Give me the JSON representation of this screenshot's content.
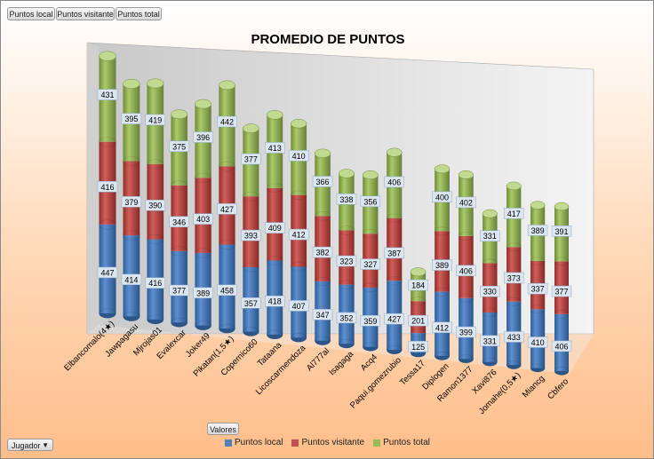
{
  "field_buttons": [
    "Puntos local",
    "Puntos visitante",
    "Puntos total"
  ],
  "values_button": "Valores",
  "row_field": {
    "label": "Jugador",
    "arrow": "▼"
  },
  "colors": {
    "local": "#4f81bd",
    "visitante": "#c0504d",
    "total": "#9bbb59"
  },
  "chart_data": {
    "type": "bar",
    "stacked": true,
    "three_d": true,
    "title": "PROMEDIO DE PUNTOS",
    "categories": [
      "Elbancomalo(4★)",
      "Jawpagasu",
      "Mjrojas01",
      "Evalexcar",
      "Joker49",
      "Pikatan(1,5★)",
      "Copernico60",
      "Tataana",
      "Licoscarmendoza",
      "Al777al",
      "Isagaga",
      "Acq4",
      "Paqui.gomezrubio",
      "Tessa17",
      "Diplogen",
      "Ramon1377",
      "Xavi876",
      "Jomahe(0,5★)",
      "Miancg",
      "Cbfero"
    ],
    "series": [
      {
        "name": "Puntos local",
        "values": [
          447,
          414,
          416,
          377,
          389,
          458,
          357,
          418,
          407,
          347,
          352,
          359,
          427,
          125,
          412,
          399,
          331,
          433,
          410,
          406
        ]
      },
      {
        "name": "Puntos visitante",
        "values": [
          416,
          379,
          390,
          346,
          403,
          427,
          393,
          409,
          412,
          382,
          323,
          327,
          387,
          201,
          389,
          406,
          330,
          373,
          337,
          377
        ]
      },
      {
        "name": "Puntos total",
        "values": [
          431,
          395,
          419,
          375,
          396,
          442,
          377,
          413,
          410,
          366,
          338,
          356,
          406,
          184,
          400,
          402,
          331,
          417,
          389,
          391
        ]
      }
    ],
    "legend": [
      "Puntos local",
      "Puntos visitante",
      "Puntos total"
    ],
    "legend_position": "bottom"
  }
}
